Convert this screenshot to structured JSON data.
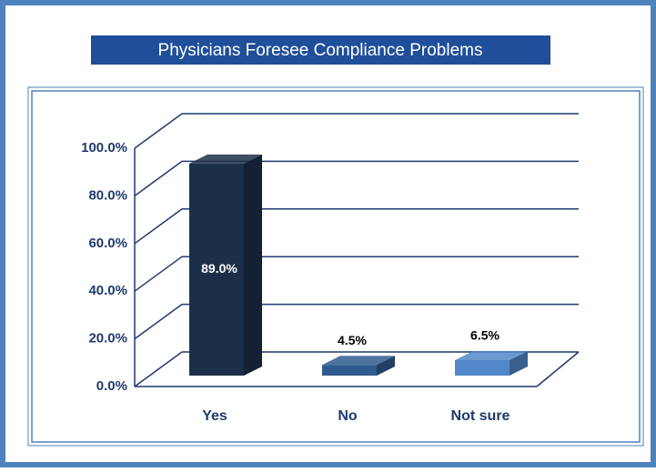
{
  "chart_data": {
    "type": "bar3d",
    "title": "Physicians Foresee Compliance Problems",
    "categories": [
      "Yes",
      "No",
      "Not sure"
    ],
    "values": [
      89.0,
      4.5,
      6.5
    ],
    "value_labels": [
      "89.0%",
      "4.5%",
      "6.5%"
    ],
    "colors": [
      "#1c2f48",
      "#2f5a8e",
      "#5287c9"
    ],
    "ylim": [
      0,
      100
    ],
    "yticks": [
      {
        "value": 0,
        "label": "0.0%"
      },
      {
        "value": 20,
        "label": "20.0%"
      },
      {
        "value": 40,
        "label": "40.0%"
      },
      {
        "value": 60,
        "label": "60.0%"
      },
      {
        "value": 80,
        "label": "80.0%"
      },
      {
        "value": 100,
        "label": "100.0%"
      }
    ],
    "grid": true
  }
}
